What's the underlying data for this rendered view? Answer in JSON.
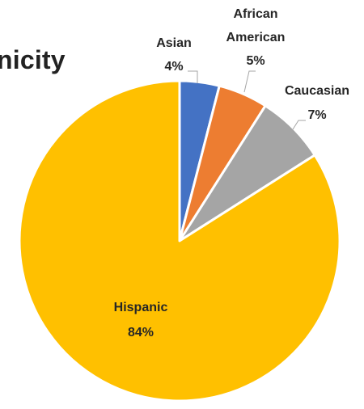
{
  "chart_data": {
    "type": "pie",
    "title": "nicity",
    "start_angle_deg": 0,
    "direction": "clockwise",
    "border_color": "#ffffff",
    "slices": [
      {
        "label": "Asian",
        "value": 4,
        "value_label": "4%",
        "color": "#4472C4"
      },
      {
        "label": "African American",
        "value": 5,
        "value_label": "5%",
        "color": "#ED7D31"
      },
      {
        "label": "Caucasian",
        "value": 7,
        "value_label": "7%",
        "color": "#A5A5A5"
      },
      {
        "label": "Hispanic",
        "value": 84,
        "value_label": "84%",
        "color": "#FFC000"
      }
    ]
  }
}
